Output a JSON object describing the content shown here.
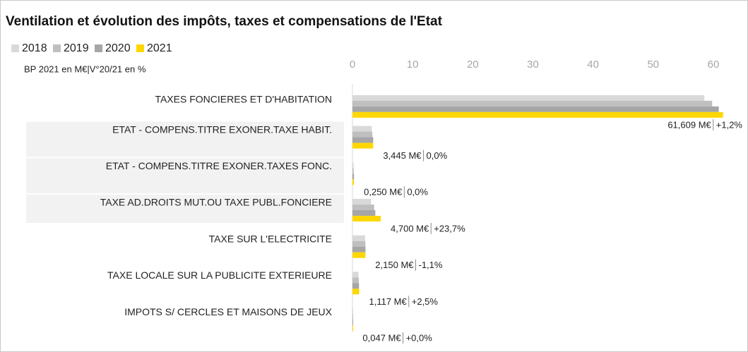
{
  "chart_data": {
    "type": "hbar",
    "title": "Ventilation et évolution des impôts, taxes et compensations de l'Etat",
    "subtitle": "BP 2021 en M€|V°20/21 en %",
    "categories": [
      "TAXES FONCIERES ET D'HABITATION",
      "ETAT - COMPENS.TITRE EXONER.TAXE HABIT.",
      "ETAT - COMPENS.TITRE EXONER.TAXES FONC.",
      "TAXE AD.DROITS MUT.OU TAXE PUBL.FONCIERE",
      "TAXE SUR L'ELECTRICITE",
      "TAXE LOCALE SUR LA PUBLICITE EXTERIEURE",
      "IMPOTS S/ CERCLES ET MAISONS DE JEUX"
    ],
    "series": [
      {
        "name": "2018",
        "color": "#d9d9d9",
        "values": [
          58.5,
          3.2,
          0.2,
          3.1,
          2.1,
          1.0,
          0.05
        ]
      },
      {
        "name": "2019",
        "color": "#bfbfbf",
        "values": [
          59.8,
          3.3,
          0.2,
          3.6,
          2.15,
          1.05,
          0.05
        ]
      },
      {
        "name": "2020",
        "color": "#a6a6a6",
        "values": [
          60.9,
          3.45,
          0.25,
          3.8,
          2.17,
          1.09,
          0.047
        ]
      },
      {
        "name": "2021",
        "color": "#ffd700",
        "values": [
          61.609,
          3.445,
          0.25,
          4.7,
          2.15,
          1.117,
          0.047
        ],
        "value_labels": [
          "61,609 M€",
          "3,445 M€",
          "0,250 M€",
          "4,700 M€",
          "2,150 M€",
          "1,117 M€",
          "0,047 M€"
        ],
        "change_labels": [
          "+1,2%",
          "0,0%",
          "0,0%",
          "+23,7%",
          "-1,1%",
          "+2,5%",
          "+0,0%"
        ]
      }
    ],
    "xlim": [
      0,
      62
    ],
    "xticks": [
      0,
      10,
      20,
      30,
      40,
      50,
      60
    ]
  }
}
